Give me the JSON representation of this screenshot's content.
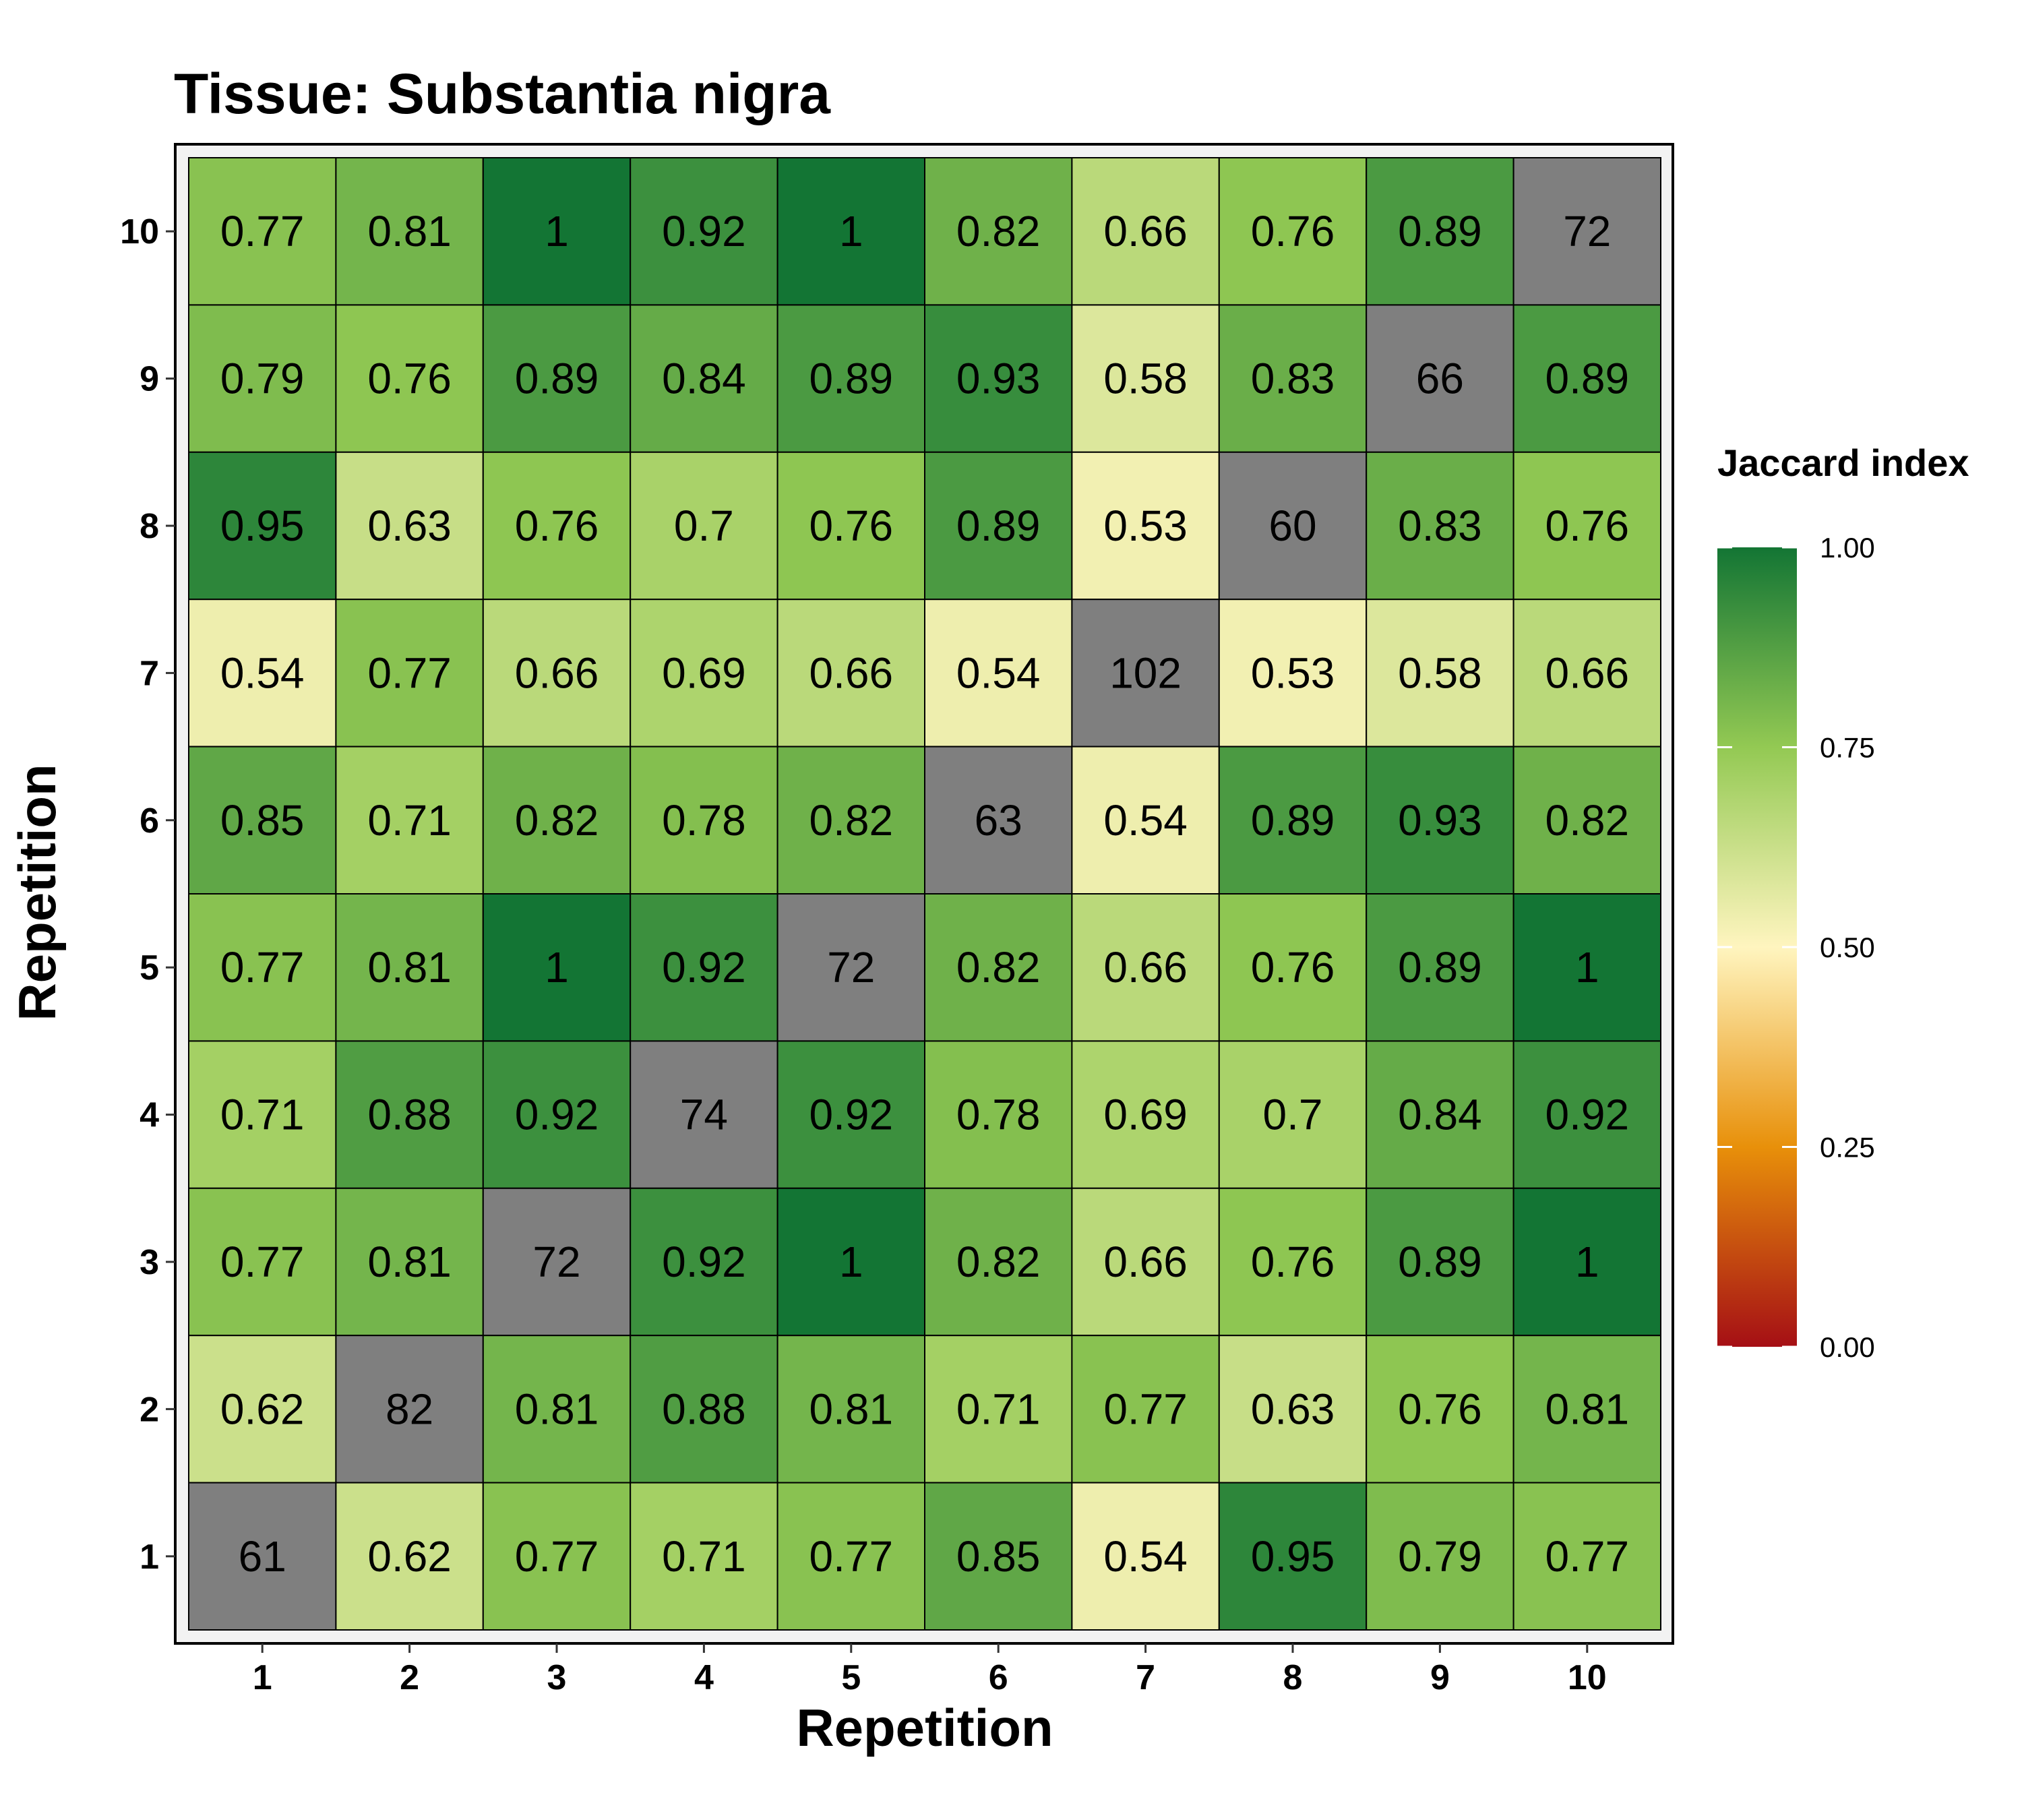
{
  "chart_data": {
    "type": "heatmap",
    "title": "Tissue: Substantia nigra",
    "xlabel": "Repetition",
    "ylabel": "Repetition",
    "x_categories": [
      "1",
      "2",
      "3",
      "4",
      "5",
      "6",
      "7",
      "8",
      "9",
      "10"
    ],
    "y_categories": [
      "1",
      "2",
      "3",
      "4",
      "5",
      "6",
      "7",
      "8",
      "9",
      "10"
    ],
    "rows_top_to_bottom": [
      "10",
      "9",
      "8",
      "7",
      "6",
      "5",
      "4",
      "3",
      "2",
      "1"
    ],
    "cells": [
      [
        "0.77",
        "0.81",
        "1",
        "0.92",
        "1",
        "0.82",
        "0.66",
        "0.76",
        "0.89",
        "72"
      ],
      [
        "0.79",
        "0.76",
        "0.89",
        "0.84",
        "0.89",
        "0.93",
        "0.58",
        "0.83",
        "66",
        "0.89"
      ],
      [
        "0.95",
        "0.63",
        "0.76",
        "0.7",
        "0.76",
        "0.89",
        "0.53",
        "60",
        "0.83",
        "0.76"
      ],
      [
        "0.54",
        "0.77",
        "0.66",
        "0.69",
        "0.66",
        "0.54",
        "102",
        "0.53",
        "0.58",
        "0.66"
      ],
      [
        "0.85",
        "0.71",
        "0.82",
        "0.78",
        "0.82",
        "63",
        "0.54",
        "0.89",
        "0.93",
        "0.82"
      ],
      [
        "0.77",
        "0.81",
        "1",
        "0.92",
        "72",
        "0.82",
        "0.66",
        "0.76",
        "0.89",
        "1"
      ],
      [
        "0.71",
        "0.88",
        "0.92",
        "74",
        "0.92",
        "0.78",
        "0.69",
        "0.7",
        "0.84",
        "0.92"
      ],
      [
        "0.77",
        "0.81",
        "72",
        "0.92",
        "1",
        "0.82",
        "0.66",
        "0.76",
        "0.89",
        "1"
      ],
      [
        "0.62",
        "82",
        "0.81",
        "0.88",
        "0.81",
        "0.71",
        "0.77",
        "0.63",
        "0.76",
        "0.81"
      ],
      [
        "61",
        "0.62",
        "0.77",
        "0.71",
        "0.77",
        "0.85",
        "0.54",
        "0.95",
        "0.79",
        "0.77"
      ]
    ],
    "diagonal_color": "#7f7f7f",
    "legend": {
      "title": "Jaccard index",
      "ticks": [
        "1.00",
        "0.75",
        "0.50",
        "0.25",
        "0.00"
      ],
      "tick_values": [
        1.0,
        0.75,
        0.5,
        0.25,
        0.0
      ],
      "range": [
        0,
        1
      ],
      "color_stops": [
        {
          "value": 0.0,
          "color": "#a50f15"
        },
        {
          "value": 0.25,
          "color": "#e8900a"
        },
        {
          "value": 0.5,
          "color": "#fff5bf"
        },
        {
          "value": 0.75,
          "color": "#93c953"
        },
        {
          "value": 1.0,
          "color": "#137534"
        }
      ]
    },
    "grid": false
  }
}
